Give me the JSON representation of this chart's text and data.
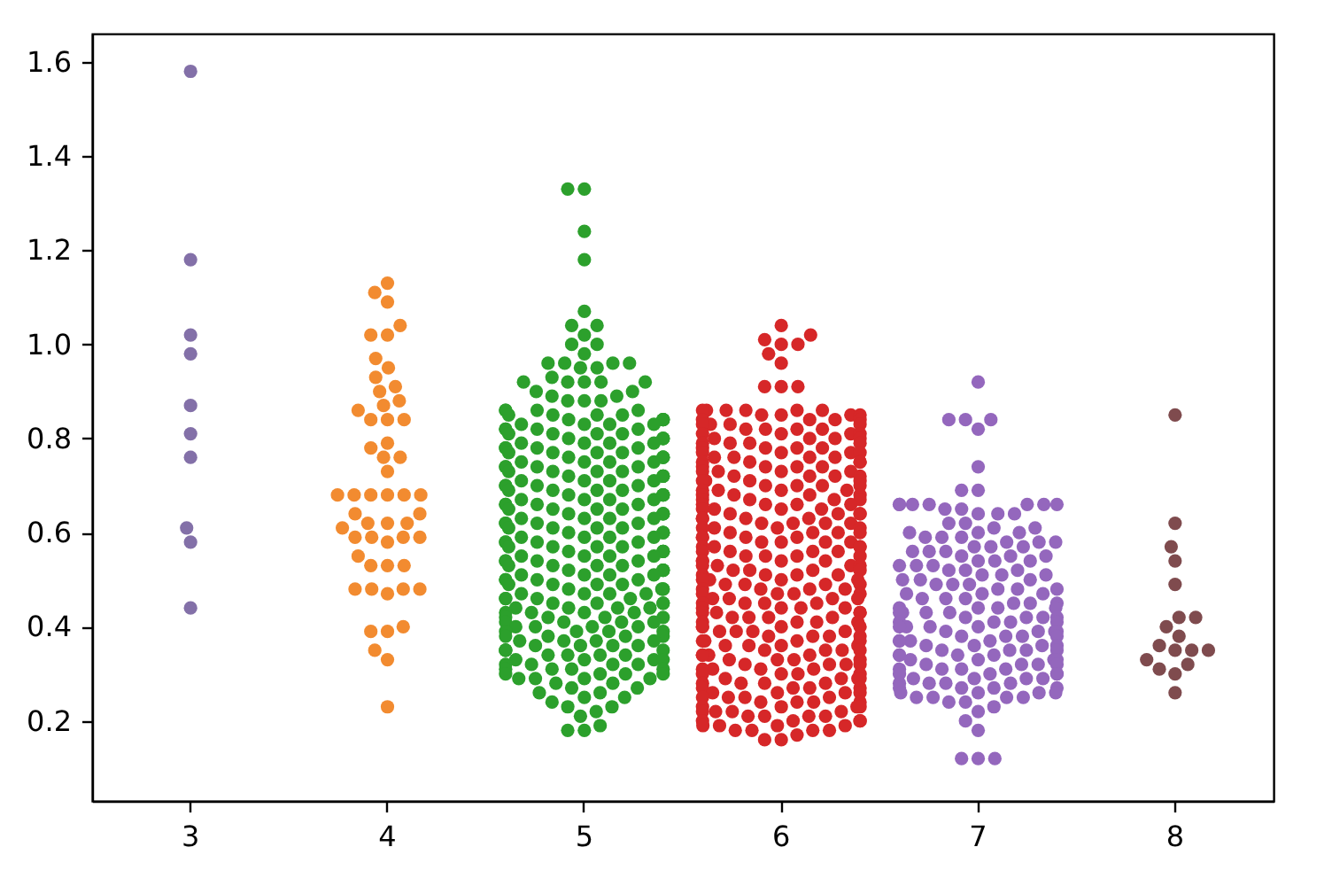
{
  "chart_data": {
    "type": "scatter",
    "categories": [
      "3",
      "4",
      "5",
      "6",
      "7",
      "8"
    ],
    "ylim": [
      0.03,
      1.66
    ],
    "yticks": [
      0.2,
      0.4,
      0.6,
      0.8,
      {
        "value": 1,
        "label": "1.0"
      },
      1.2,
      1.4,
      1.6
    ],
    "marker": "circle",
    "series": [
      {
        "color": "#8370a8",
        "x": [
          "3",
          "3",
          "3",
          "3",
          "3",
          "3",
          "3",
          "3",
          "3",
          "3"
        ],
        "values": [
          1.58,
          1.18,
          1.02,
          0.98,
          0.87,
          0.81,
          0.76,
          0.61,
          0.58,
          0.44
        ]
      },
      {
        "color": "#f28b30",
        "x": [
          "4",
          "4",
          "4",
          "4",
          "4",
          "4",
          "4",
          "4",
          "4",
          "4",
          "4",
          "4",
          "4",
          "4",
          "4",
          "4",
          "4",
          "4",
          "4",
          "4",
          "4",
          "4",
          "4",
          "4",
          "4",
          "4",
          "4",
          "4",
          "4",
          "4",
          "4",
          "4",
          "4",
          "4",
          "4",
          "4",
          "4",
          "4",
          "4",
          "4",
          "4",
          "4",
          "4",
          "4",
          "4",
          "4",
          "4",
          "4",
          "4",
          "4",
          "4",
          "4",
          "4",
          "4"
        ],
        "values": [
          1.13,
          1.11,
          1.09,
          1.04,
          1.02,
          1.02,
          0.97,
          0.95,
          0.93,
          0.91,
          0.9,
          0.88,
          0.87,
          0.86,
          0.84,
          0.84,
          0.84,
          0.79,
          0.78,
          0.76,
          0.76,
          0.73,
          0.68,
          0.68,
          0.68,
          0.68,
          0.68,
          0.68,
          0.64,
          0.64,
          0.62,
          0.62,
          0.62,
          0.61,
          0.59,
          0.59,
          0.59,
          0.59,
          0.58,
          0.55,
          0.53,
          0.53,
          0.53,
          0.48,
          0.48,
          0.48,
          0.48,
          0.47,
          0.4,
          0.39,
          0.39,
          0.35,
          0.33,
          0.23
        ]
      },
      {
        "color": "#2ca02c",
        "x": [
          "5",
          "5",
          "5",
          "5",
          "5",
          "5",
          "5",
          "5",
          "5",
          "5",
          "5",
          "5",
          "5",
          "5",
          "5",
          "5",
          "5",
          "5",
          "5",
          "5",
          "5",
          "5",
          "5",
          "5",
          "5",
          "5",
          "5",
          "5",
          "5",
          "5",
          "5",
          "5",
          "5",
          "5",
          "5",
          "5",
          "5",
          "5",
          "5",
          "5",
          "5",
          "5",
          "5",
          "5",
          "5",
          "5",
          "5",
          "5",
          "5",
          "5",
          "5",
          "5",
          "5",
          "5",
          "5",
          "5",
          "5",
          "5",
          "5",
          "5",
          "5",
          "5",
          "5",
          "5",
          "5",
          "5",
          "5",
          "5",
          "5",
          "5",
          "5",
          "5",
          "5",
          "5",
          "5",
          "5",
          "5",
          "5",
          "5",
          "5",
          "5",
          "5",
          "5",
          "5",
          "5",
          "5",
          "5",
          "5",
          "5",
          "5",
          "5",
          "5",
          "5",
          "5",
          "5",
          "5",
          "5",
          "5",
          "5",
          "5",
          "5",
          "5",
          "5",
          "5",
          "5",
          "5",
          "5",
          "5",
          "5",
          "5",
          "5",
          "5",
          "5",
          "5",
          "5",
          "5",
          "5",
          "5",
          "5",
          "5",
          "5",
          "5",
          "5",
          "5",
          "5",
          "5",
          "5",
          "5",
          "5",
          "5",
          "5",
          "5",
          "5",
          "5",
          "5",
          "5",
          "5",
          "5",
          "5",
          "5",
          "5",
          "5",
          "5",
          "5",
          "5",
          "5",
          "5",
          "5",
          "5",
          "5",
          "5",
          "5",
          "5",
          "5",
          "5",
          "5",
          "5",
          "5",
          "5",
          "5",
          "5",
          "5",
          "5",
          "5",
          "5",
          "5",
          "5",
          "5",
          "5",
          "5",
          "5",
          "5",
          "5",
          "5",
          "5",
          "5",
          "5",
          "5",
          "5",
          "5",
          "5",
          "5",
          "5",
          "5",
          "5",
          "5",
          "5",
          "5",
          "5",
          "5",
          "5",
          "5",
          "5",
          "5",
          "5",
          "5",
          "5",
          "5",
          "5",
          "5",
          "5",
          "5",
          "5",
          "5",
          "5",
          "5",
          "5",
          "5",
          "5",
          "5",
          "5",
          "5",
          "5",
          "5",
          "5",
          "5",
          "5",
          "5",
          "5",
          "5",
          "5",
          "5",
          "5",
          "5",
          "5",
          "5",
          "5",
          "5",
          "5",
          "5",
          "5",
          "5",
          "5",
          "5",
          "5",
          "5",
          "5",
          "5",
          "5",
          "5",
          "5",
          "5",
          "5",
          "5",
          "5",
          "5",
          "5",
          "5",
          "5",
          "5",
          "5",
          "5",
          "5",
          "5",
          "5",
          "5",
          "5",
          "5",
          "5",
          "5",
          "5",
          "5",
          "5",
          "5",
          "5",
          "5",
          "5",
          "5",
          "5",
          "5",
          "5",
          "5",
          "5",
          "5",
          "5",
          "5",
          "5",
          "5"
        ],
        "values": [
          1.33,
          1.33,
          1.24,
          1.18,
          1.07,
          1.04,
          1.04,
          1.02,
          1.0,
          1.0,
          0.98,
          0.96,
          0.96,
          0.96,
          0.96,
          0.95,
          0.95,
          0.93,
          0.92,
          0.92,
          0.92,
          0.92,
          0.92,
          0.9,
          0.9,
          0.89,
          0.89,
          0.88,
          0.88,
          0.88,
          0.86,
          0.86,
          0.86,
          0.86,
          0.85,
          0.85,
          0.85,
          0.85,
          0.84,
          0.84,
          0.84,
          0.84,
          0.83,
          0.83,
          0.83,
          0.83,
          0.82,
          0.82,
          0.82,
          0.82,
          0.81,
          0.81,
          0.81,
          0.81,
          0.8,
          0.8,
          0.8,
          0.8,
          0.79,
          0.79,
          0.79,
          0.79,
          0.78,
          0.78,
          0.78,
          0.78,
          0.77,
          0.77,
          0.77,
          0.77,
          0.76,
          0.76,
          0.76,
          0.76,
          0.75,
          0.75,
          0.75,
          0.75,
          0.74,
          0.74,
          0.74,
          0.74,
          0.73,
          0.73,
          0.73,
          0.73,
          0.72,
          0.72,
          0.72,
          0.72,
          0.71,
          0.71,
          0.71,
          0.71,
          0.7,
          0.7,
          0.7,
          0.7,
          0.69,
          0.69,
          0.69,
          0.69,
          0.68,
          0.68,
          0.68,
          0.68,
          0.67,
          0.67,
          0.67,
          0.67,
          0.66,
          0.66,
          0.66,
          0.66,
          0.65,
          0.65,
          0.65,
          0.65,
          0.64,
          0.64,
          0.64,
          0.64,
          0.63,
          0.63,
          0.63,
          0.63,
          0.62,
          0.62,
          0.62,
          0.62,
          0.61,
          0.61,
          0.61,
          0.61,
          0.6,
          0.6,
          0.6,
          0.6,
          0.59,
          0.59,
          0.59,
          0.59,
          0.58,
          0.58,
          0.58,
          0.58,
          0.57,
          0.57,
          0.57,
          0.57,
          0.56,
          0.56,
          0.56,
          0.56,
          0.55,
          0.55,
          0.55,
          0.55,
          0.54,
          0.54,
          0.54,
          0.54,
          0.53,
          0.53,
          0.53,
          0.53,
          0.52,
          0.52,
          0.52,
          0.52,
          0.51,
          0.51,
          0.51,
          0.51,
          0.5,
          0.5,
          0.5,
          0.5,
          0.49,
          0.49,
          0.49,
          0.49,
          0.48,
          0.48,
          0.48,
          0.48,
          0.47,
          0.47,
          0.47,
          0.47,
          0.46,
          0.46,
          0.46,
          0.46,
          0.45,
          0.45,
          0.45,
          0.45,
          0.44,
          0.44,
          0.44,
          0.44,
          0.43,
          0.43,
          0.43,
          0.43,
          0.42,
          0.42,
          0.42,
          0.42,
          0.41,
          0.41,
          0.41,
          0.41,
          0.4,
          0.4,
          0.4,
          0.4,
          0.39,
          0.39,
          0.39,
          0.39,
          0.38,
          0.38,
          0.38,
          0.38,
          0.37,
          0.37,
          0.37,
          0.37,
          0.36,
          0.36,
          0.36,
          0.36,
          0.35,
          0.35,
          0.35,
          0.35,
          0.34,
          0.34,
          0.34,
          0.34,
          0.33,
          0.33,
          0.33,
          0.33,
          0.32,
          0.32,
          0.32,
          0.32,
          0.31,
          0.31,
          0.31,
          0.31,
          0.3,
          0.3,
          0.3,
          0.3,
          0.29,
          0.29,
          0.29,
          0.29,
          0.28,
          0.28,
          0.27,
          0.27,
          0.26,
          0.26,
          0.25,
          0.25,
          0.24,
          0.23,
          0.23,
          0.22,
          0.21,
          0.19,
          0.18,
          0.18
        ]
      },
      {
        "color": "#d62728",
        "x": [
          "6",
          "6",
          "6",
          "6",
          "6",
          "6",
          "6",
          "6",
          "6",
          "6",
          "6",
          "6",
          "6",
          "6",
          "6",
          "6",
          "6",
          "6",
          "6",
          "6",
          "6",
          "6",
          "6",
          "6",
          "6",
          "6",
          "6",
          "6",
          "6",
          "6",
          "6",
          "6",
          "6",
          "6",
          "6",
          "6",
          "6",
          "6",
          "6",
          "6",
          "6",
          "6",
          "6",
          "6",
          "6",
          "6",
          "6",
          "6",
          "6",
          "6",
          "6",
          "6",
          "6",
          "6",
          "6",
          "6",
          "6",
          "6",
          "6",
          "6",
          "6",
          "6",
          "6",
          "6",
          "6",
          "6",
          "6",
          "6",
          "6",
          "6",
          "6",
          "6",
          "6",
          "6",
          "6",
          "6",
          "6",
          "6",
          "6",
          "6",
          "6",
          "6",
          "6",
          "6",
          "6",
          "6",
          "6",
          "6",
          "6",
          "6",
          "6",
          "6",
          "6",
          "6",
          "6",
          "6",
          "6",
          "6",
          "6",
          "6",
          "6",
          "6",
          "6",
          "6",
          "6",
          "6",
          "6",
          "6",
          "6",
          "6",
          "6",
          "6",
          "6",
          "6",
          "6",
          "6",
          "6",
          "6",
          "6",
          "6",
          "6",
          "6",
          "6",
          "6",
          "6",
          "6",
          "6",
          "6",
          "6",
          "6",
          "6",
          "6",
          "6",
          "6",
          "6",
          "6",
          "6",
          "6",
          "6",
          "6",
          "6",
          "6",
          "6",
          "6",
          "6",
          "6",
          "6",
          "6",
          "6",
          "6",
          "6",
          "6",
          "6",
          "6",
          "6",
          "6",
          "6",
          "6",
          "6",
          "6",
          "6",
          "6",
          "6",
          "6",
          "6",
          "6",
          "6",
          "6",
          "6",
          "6",
          "6",
          "6",
          "6",
          "6",
          "6",
          "6",
          "6",
          "6",
          "6",
          "6",
          "6",
          "6",
          "6",
          "6",
          "6",
          "6",
          "6",
          "6",
          "6",
          "6",
          "6",
          "6",
          "6",
          "6",
          "6",
          "6",
          "6",
          "6",
          "6",
          "6",
          "6",
          "6",
          "6",
          "6",
          "6",
          "6",
          "6",
          "6",
          "6",
          "6",
          "6",
          "6",
          "6",
          "6",
          "6",
          "6",
          "6",
          "6",
          "6",
          "6",
          "6",
          "6",
          "6",
          "6",
          "6",
          "6",
          "6",
          "6",
          "6",
          "6",
          "6",
          "6",
          "6",
          "6",
          "6",
          "6",
          "6",
          "6",
          "6",
          "6",
          "6",
          "6",
          "6",
          "6",
          "6",
          "6",
          "6",
          "6",
          "6",
          "6",
          "6",
          "6",
          "6",
          "6",
          "6",
          "6",
          "6",
          "6",
          "6",
          "6",
          "6",
          "6",
          "6",
          "6",
          "6",
          "6",
          "6",
          "6",
          "6",
          "6",
          "6",
          "6",
          "6",
          "6",
          "6",
          "6",
          "6",
          "6",
          "6",
          "6",
          "6",
          "6",
          "6",
          "6",
          "6",
          "6",
          "6",
          "6",
          "6",
          "6",
          "6"
        ],
        "values": [
          1.04,
          1.02,
          1.01,
          1.0,
          1.0,
          0.98,
          0.96,
          0.91,
          0.91,
          0.91,
          0.86,
          0.86,
          0.86,
          0.86,
          0.86,
          0.86,
          0.85,
          0.85,
          0.85,
          0.85,
          0.84,
          0.84,
          0.84,
          0.84,
          0.83,
          0.83,
          0.83,
          0.83,
          0.82,
          0.82,
          0.82,
          0.82,
          0.81,
          0.81,
          0.81,
          0.81,
          0.8,
          0.8,
          0.8,
          0.8,
          0.79,
          0.79,
          0.79,
          0.79,
          0.78,
          0.78,
          0.78,
          0.78,
          0.77,
          0.77,
          0.77,
          0.77,
          0.76,
          0.76,
          0.76,
          0.76,
          0.75,
          0.75,
          0.75,
          0.75,
          0.74,
          0.74,
          0.74,
          0.74,
          0.73,
          0.73,
          0.73,
          0.73,
          0.72,
          0.72,
          0.72,
          0.72,
          0.71,
          0.71,
          0.71,
          0.71,
          0.7,
          0.7,
          0.7,
          0.7,
          0.69,
          0.69,
          0.69,
          0.69,
          0.68,
          0.68,
          0.68,
          0.68,
          0.67,
          0.67,
          0.67,
          0.67,
          0.66,
          0.66,
          0.66,
          0.66,
          0.65,
          0.65,
          0.65,
          0.65,
          0.64,
          0.64,
          0.64,
          0.64,
          0.63,
          0.63,
          0.63,
          0.63,
          0.62,
          0.62,
          0.62,
          0.62,
          0.61,
          0.61,
          0.61,
          0.61,
          0.6,
          0.6,
          0.6,
          0.6,
          0.59,
          0.59,
          0.59,
          0.59,
          0.58,
          0.58,
          0.58,
          0.58,
          0.57,
          0.57,
          0.57,
          0.57,
          0.56,
          0.56,
          0.56,
          0.56,
          0.55,
          0.55,
          0.55,
          0.55,
          0.54,
          0.54,
          0.54,
          0.54,
          0.53,
          0.53,
          0.53,
          0.53,
          0.52,
          0.52,
          0.52,
          0.52,
          0.51,
          0.51,
          0.51,
          0.51,
          0.5,
          0.5,
          0.5,
          0.5,
          0.49,
          0.49,
          0.49,
          0.49,
          0.48,
          0.48,
          0.48,
          0.48,
          0.47,
          0.47,
          0.47,
          0.47,
          0.46,
          0.46,
          0.46,
          0.46,
          0.45,
          0.45,
          0.45,
          0.45,
          0.44,
          0.44,
          0.44,
          0.44,
          0.43,
          0.43,
          0.43,
          0.43,
          0.42,
          0.42,
          0.42,
          0.42,
          0.41,
          0.41,
          0.41,
          0.41,
          0.4,
          0.4,
          0.4,
          0.4,
          0.39,
          0.39,
          0.39,
          0.39,
          0.38,
          0.38,
          0.38,
          0.38,
          0.37,
          0.37,
          0.37,
          0.37,
          0.36,
          0.36,
          0.36,
          0.36,
          0.35,
          0.35,
          0.35,
          0.35,
          0.34,
          0.34,
          0.34,
          0.34,
          0.33,
          0.33,
          0.33,
          0.33,
          0.32,
          0.32,
          0.32,
          0.32,
          0.31,
          0.31,
          0.31,
          0.31,
          0.3,
          0.3,
          0.3,
          0.3,
          0.29,
          0.29,
          0.29,
          0.29,
          0.28,
          0.28,
          0.28,
          0.28,
          0.27,
          0.27,
          0.27,
          0.27,
          0.26,
          0.26,
          0.26,
          0.26,
          0.25,
          0.25,
          0.25,
          0.25,
          0.24,
          0.24,
          0.24,
          0.24,
          0.23,
          0.23,
          0.23,
          0.23,
          0.22,
          0.22,
          0.22,
          0.22,
          0.21,
          0.21,
          0.21,
          0.21,
          0.2,
          0.2,
          0.2,
          0.2,
          0.19,
          0.19,
          0.19,
          0.19,
          0.18,
          0.18,
          0.18,
          0.18,
          0.17,
          0.16,
          0.16
        ]
      },
      {
        "color": "#9467bd",
        "x": [
          "7",
          "7",
          "7",
          "7",
          "7",
          "7",
          "7",
          "7",
          "7",
          "7",
          "7",
          "7",
          "7",
          "7",
          "7",
          "7",
          "7",
          "7",
          "7",
          "7",
          "7",
          "7",
          "7",
          "7",
          "7",
          "7",
          "7",
          "7",
          "7",
          "7",
          "7",
          "7",
          "7",
          "7",
          "7",
          "7",
          "7",
          "7",
          "7",
          "7",
          "7",
          "7",
          "7",
          "7",
          "7",
          "7",
          "7",
          "7",
          "7",
          "7",
          "7",
          "7",
          "7",
          "7",
          "7",
          "7",
          "7",
          "7",
          "7",
          "7",
          "7",
          "7",
          "7",
          "7",
          "7",
          "7",
          "7",
          "7",
          "7",
          "7",
          "7",
          "7",
          "7",
          "7",
          "7",
          "7",
          "7",
          "7",
          "7",
          "7",
          "7",
          "7",
          "7",
          "7",
          "7",
          "7",
          "7",
          "7",
          "7",
          "7",
          "7",
          "7",
          "7",
          "7",
          "7",
          "7",
          "7",
          "7",
          "7",
          "7",
          "7",
          "7",
          "7",
          "7",
          "7",
          "7",
          "7",
          "7",
          "7",
          "7",
          "7",
          "7",
          "7",
          "7",
          "7",
          "7",
          "7",
          "7",
          "7",
          "7",
          "7",
          "7",
          "7",
          "7",
          "7",
          "7",
          "7",
          "7",
          "7",
          "7",
          "7",
          "7",
          "7",
          "7",
          "7",
          "7",
          "7",
          "7",
          "7",
          "7",
          "7",
          "7",
          "7",
          "7",
          "7",
          "7",
          "7",
          "7",
          "7",
          "7",
          "7",
          "7",
          "7",
          "7",
          "7",
          "7",
          "7",
          "7",
          "7",
          "7",
          "7"
        ],
        "values": [
          0.92,
          0.84,
          0.84,
          0.84,
          0.82,
          0.74,
          0.69,
          0.69,
          0.66,
          0.66,
          0.66,
          0.66,
          0.66,
          0.66,
          0.66,
          0.65,
          0.65,
          0.64,
          0.64,
          0.64,
          0.62,
          0.62,
          0.61,
          0.61,
          0.6,
          0.6,
          0.6,
          0.59,
          0.59,
          0.59,
          0.58,
          0.58,
          0.58,
          0.57,
          0.57,
          0.57,
          0.56,
          0.56,
          0.56,
          0.55,
          0.55,
          0.55,
          0.54,
          0.54,
          0.54,
          0.53,
          0.53,
          0.53,
          0.52,
          0.52,
          0.52,
          0.51,
          0.51,
          0.51,
          0.5,
          0.5,
          0.5,
          0.49,
          0.49,
          0.49,
          0.48,
          0.48,
          0.48,
          0.47,
          0.47,
          0.47,
          0.46,
          0.46,
          0.46,
          0.45,
          0.45,
          0.45,
          0.44,
          0.44,
          0.44,
          0.44,
          0.43,
          0.43,
          0.43,
          0.43,
          0.42,
          0.42,
          0.42,
          0.42,
          0.41,
          0.41,
          0.41,
          0.41,
          0.4,
          0.4,
          0.4,
          0.4,
          0.39,
          0.39,
          0.39,
          0.39,
          0.38,
          0.38,
          0.38,
          0.38,
          0.37,
          0.37,
          0.37,
          0.37,
          0.36,
          0.36,
          0.36,
          0.36,
          0.35,
          0.35,
          0.35,
          0.35,
          0.34,
          0.34,
          0.34,
          0.34,
          0.33,
          0.33,
          0.33,
          0.33,
          0.32,
          0.32,
          0.32,
          0.32,
          0.31,
          0.31,
          0.31,
          0.31,
          0.3,
          0.3,
          0.3,
          0.3,
          0.29,
          0.29,
          0.29,
          0.29,
          0.28,
          0.28,
          0.28,
          0.28,
          0.27,
          0.27,
          0.27,
          0.27,
          0.26,
          0.26,
          0.26,
          0.26,
          0.25,
          0.25,
          0.25,
          0.25,
          0.24,
          0.24,
          0.23,
          0.22,
          0.2,
          0.18,
          0.12,
          0.12,
          0.12
        ]
      },
      {
        "color": "#7f4b4e",
        "x": [
          "8",
          "8",
          "8",
          "8",
          "8",
          "8",
          "8",
          "8",
          "8",
          "8",
          "8",
          "8",
          "8",
          "8",
          "8",
          "8",
          "8",
          "8"
        ],
        "values": [
          0.85,
          0.62,
          0.57,
          0.54,
          0.49,
          0.42,
          0.42,
          0.4,
          0.38,
          0.36,
          0.35,
          0.35,
          0.35,
          0.33,
          0.32,
          0.31,
          0.3,
          0.26
        ]
      }
    ]
  }
}
